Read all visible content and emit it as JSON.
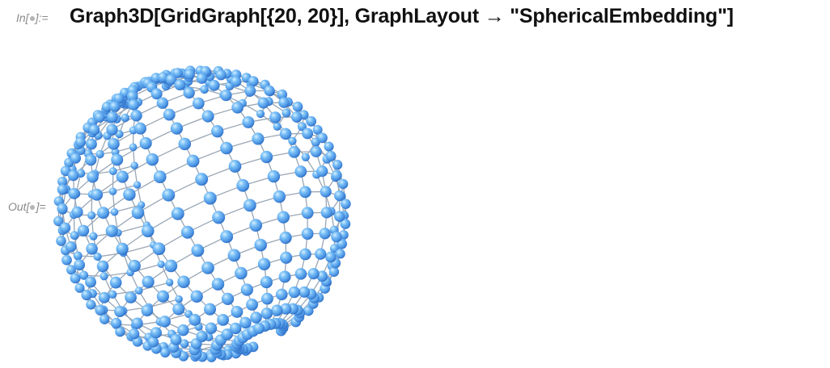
{
  "input_cell": {
    "label_prefix": "In[",
    "label_suffix": "]:=",
    "code": "Graph3D[GridGraph[{20, 20}], GraphLayout → \"SphericalEmbedding\"]"
  },
  "output_cell": {
    "label_prefix": "Out[",
    "label_suffix": "]="
  },
  "graph": {
    "type": "GridGraph",
    "dimensions": [
      20,
      20
    ],
    "layout": "SphericalEmbedding",
    "vertex_color": "#6fb8f5",
    "vertex_highlight": "#b9e1ff",
    "vertex_shadow": "#2f72c9",
    "edge_color": "#9aa7b5"
  }
}
